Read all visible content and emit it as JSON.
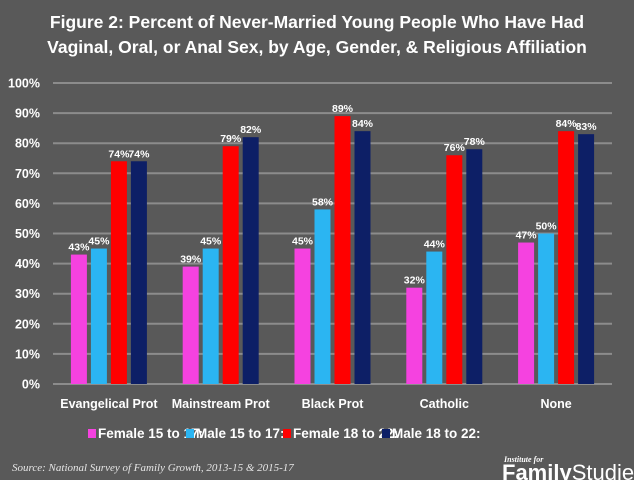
{
  "chart_data": {
    "type": "bar",
    "title": "Figure 2: Percent of Never-Married Young People Who Have Had Vaginal, Oral, or Anal Sex, by Age, Gender, & Religious Affiliation",
    "title_lines": [
      "Figure 2: Percent of Never-Married Young People Who Have Had",
      "Vaginal, Oral, or Anal Sex, by Age, Gender, & Religious Affiliation"
    ],
    "xlabel": "",
    "ylabel": "",
    "ylim": [
      0,
      100
    ],
    "yticks": [
      0,
      10,
      20,
      30,
      40,
      50,
      60,
      70,
      80,
      90,
      100
    ],
    "ytick_labels": [
      "0%",
      "10%",
      "20%",
      "30%",
      "40%",
      "50%",
      "60%",
      "70%",
      "80%",
      "90%",
      "100%"
    ],
    "grid": true,
    "legend_position": "bottom",
    "categories": [
      "Evangelical Prot",
      "Mainstream Prot",
      "Black Prot",
      "Catholic",
      "None"
    ],
    "series": [
      {
        "name": "Female 15 to 17:",
        "color": "#f542e0",
        "values": [
          43,
          39,
          45,
          32,
          47
        ],
        "labels": [
          "43%",
          "39%",
          "45%",
          "32%",
          "47%"
        ]
      },
      {
        "name": "Male 15 to 17:",
        "color": "#2bb5f2",
        "values": [
          45,
          45,
          58,
          44,
          50
        ],
        "labels": [
          "45%",
          "45%",
          "58%",
          "44%",
          "50%"
        ]
      },
      {
        "name": "Female 18 to 22:",
        "color": "#ff0000",
        "values": [
          74,
          79,
          89,
          76,
          84
        ],
        "labels": [
          "74%",
          "79%",
          "89%",
          "76%",
          "84%"
        ]
      },
      {
        "name": "Male 18 to 22:",
        "color": "#0d1f66",
        "values": [
          74,
          82,
          84,
          78,
          83
        ],
        "labels": [
          "74%",
          "82%",
          "84%",
          "78%",
          "83%"
        ]
      }
    ]
  },
  "footer": {
    "source": "Source: National Survey of Family Growth, 2013-15 & 2015-17",
    "logo_small": "Institute for",
    "logo_bold": "Family",
    "logo_light": "Studies"
  }
}
